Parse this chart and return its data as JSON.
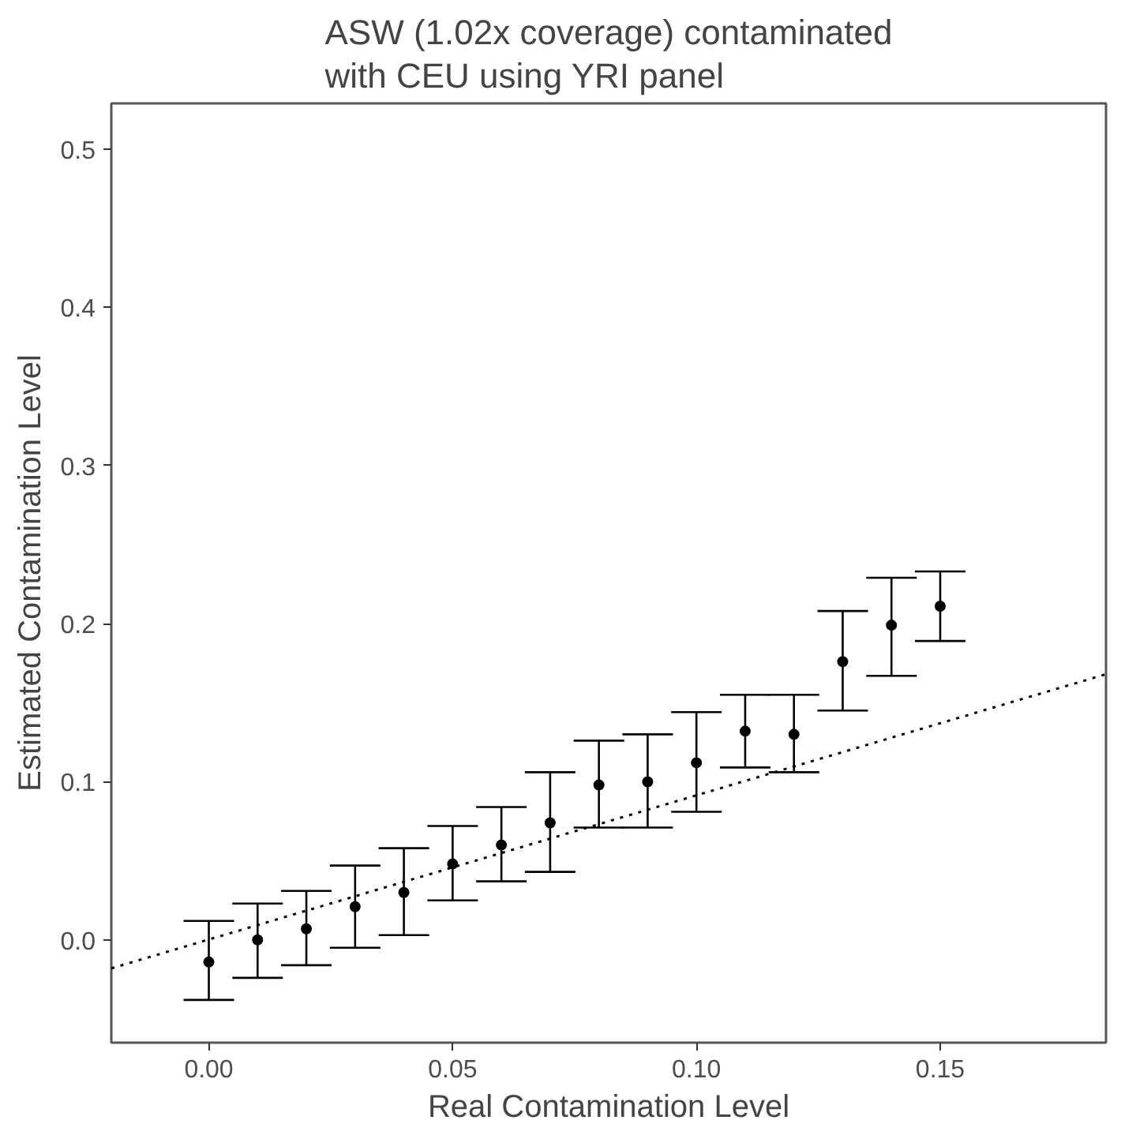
{
  "chart_data": {
    "type": "scatter",
    "title": "ASW (1.02x coverage) contaminated\nwith CEU using YRI panel",
    "xlabel": "Real Contamination Level",
    "ylabel": "Estimated Contamination Level",
    "x": [
      0.0,
      0.01,
      0.02,
      0.03,
      0.04,
      0.05,
      0.06,
      0.07,
      0.08,
      0.09,
      0.1,
      0.11,
      0.12,
      0.13,
      0.14,
      0.15
    ],
    "series": [
      {
        "color": "#000000",
        "marker": "circle",
        "values": [
          -0.014,
          0.0,
          0.007,
          0.021,
          0.03,
          0.048,
          0.06,
          0.074,
          0.098,
          0.1,
          0.112,
          0.132,
          0.13,
          0.176,
          0.199,
          0.211
        ],
        "errors": [
          [
            -0.038,
            0.012
          ],
          [
            -0.024,
            0.023
          ],
          [
            -0.016,
            0.031
          ],
          [
            -0.005,
            0.047
          ],
          [
            0.003,
            0.058
          ],
          [
            0.025,
            0.072
          ],
          [
            0.037,
            0.084
          ],
          [
            0.043,
            0.106
          ],
          [
            0.071,
            0.126
          ],
          [
            0.071,
            0.13
          ],
          [
            0.081,
            0.144
          ],
          [
            0.109,
            0.155
          ],
          [
            0.106,
            0.155
          ],
          [
            0.145,
            0.208
          ],
          [
            0.167,
            0.229
          ],
          [
            0.189,
            0.233
          ]
        ]
      },
      {
        "type": "line",
        "color": "#000000",
        "line_style": "dotted",
        "x": [
          -0.02,
          0.184
        ],
        "values": [
          -0.018,
          0.168
        ]
      }
    ],
    "xlim": [
      -0.02,
      0.184
    ],
    "ylim": [
      -0.065,
      0.529
    ],
    "xticks": [
      {
        "value": 0.0,
        "label": "0.00"
      },
      0.05,
      {
        "value": 0.1,
        "label": "0.10"
      },
      0.15
    ],
    "yticks": [
      {
        "value": 0.0,
        "label": "0.0"
      },
      0.1,
      0.2,
      0.3,
      0.4,
      0.5
    ],
    "grid": false
  }
}
